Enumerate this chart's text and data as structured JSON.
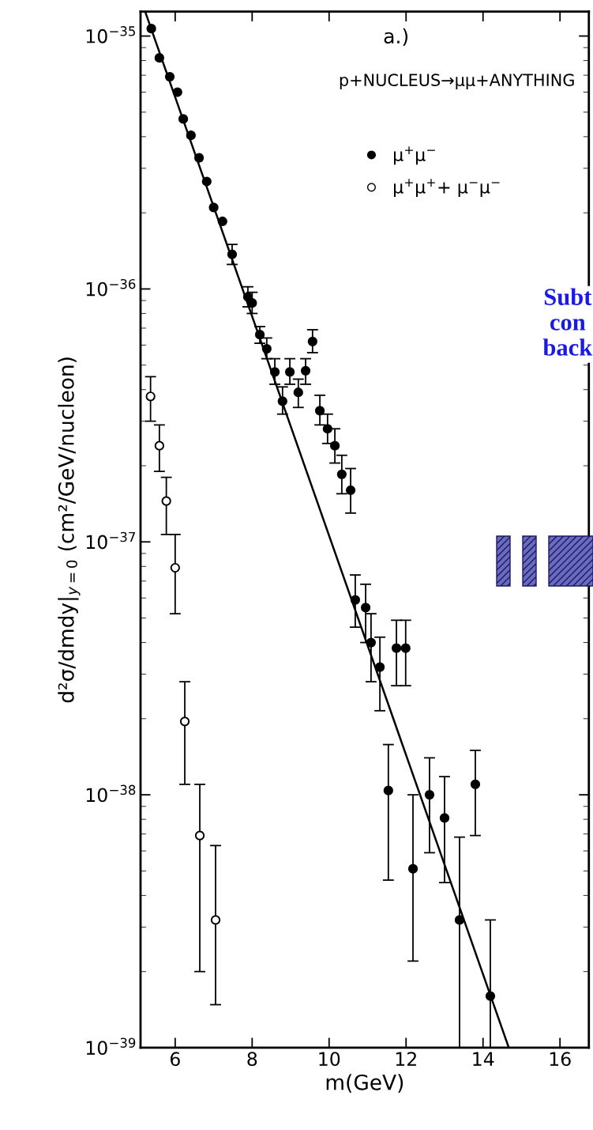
{
  "chart_data": {
    "type": "scatter",
    "xlabel": "m(GeV)",
    "ylabel": "d²σ/dmdy|$_{y=0}$ (cm²/GeV/nucleon)",
    "log": "y",
    "xlim": [
      5.1,
      16.75
    ],
    "ylim": [
      1e-39,
      1.25e-35
    ],
    "xticks": [
      6,
      8,
      10,
      12,
      14,
      16
    ],
    "yticks": [
      {
        "value": 1e-39,
        "label": "10$^{−39}$"
      },
      {
        "value": 1e-38,
        "label": "10$^{−38}$"
      },
      {
        "value": 1e-37,
        "label": "10$^{−37}$"
      },
      {
        "value": 1e-36,
        "label": "10$^{−36}$"
      },
      {
        "value": 1e-35,
        "label": "10$^{−35}$"
      }
    ],
    "grid": false,
    "legend": "top right",
    "annotations": [
      "a.)",
      "p+NUCLEUS→μμ+ANYTHING",
      "Subt\ncon\nback"
    ],
    "series": [
      {
        "name": "μ$^{+}$μ$^{−}$",
        "color": "#000000",
        "marker": "circle",
        "x": [
          5.38,
          5.59,
          5.86,
          6.06,
          6.21,
          6.41,
          6.62,
          6.82,
          7.0,
          7.23,
          7.48,
          7.89,
          8.0,
          8.2,
          8.38,
          8.59,
          8.79,
          8.98,
          9.2,
          9.39,
          9.57,
          9.76,
          9.96,
          10.15,
          10.33,
          10.56,
          10.68,
          10.95,
          11.09,
          11.32,
          11.54,
          11.75,
          11.99,
          12.18,
          12.61,
          13.0,
          13.39,
          13.8,
          14.19
        ],
        "values": [
          1.07e-35,
          8.2e-36,
          6.9e-36,
          6e-36,
          4.7e-36,
          4.05e-36,
          3.3e-36,
          2.66e-36,
          2.1e-36,
          1.85e-36,
          1.37e-36,
          9.3e-37,
          8.8e-37,
          6.6e-37,
          5.8e-37,
          4.7e-37,
          3.6e-37,
          4.7e-37,
          3.9e-37,
          4.75e-37,
          6.2e-37,
          3.3e-37,
          2.8e-37,
          2.4e-37,
          1.85e-37,
          1.6e-37,
          5.9e-38,
          5.5e-38,
          4e-38,
          3.2e-38,
          1.04e-38,
          3.8e-38,
          3.8e-38,
          5.1e-39,
          1e-38,
          8.1e-39,
          3.2e-39,
          1.1e-38,
          1.6e-39
        ],
        "errors": [
          null,
          null,
          null,
          null,
          null,
          null,
          null,
          null,
          null,
          null,
          [
            1.25e-36,
            1.5e-36
          ],
          [
            8.5e-37,
            1.02e-36
          ],
          [
            8e-37,
            9.7e-37
          ],
          [
            6.1e-37,
            7.1e-37
          ],
          [
            5.3e-37,
            6.4e-37
          ],
          [
            4.2e-37,
            5.3e-37
          ],
          [
            3.2e-37,
            4.1e-37
          ],
          [
            4.2e-37,
            5.3e-37
          ],
          [
            3.4e-37,
            4.4e-37
          ],
          [
            4.2e-37,
            5.3e-37
          ],
          [
            5.6e-37,
            6.9e-37
          ],
          [
            2.9e-37,
            3.8e-37
          ],
          [
            2.45e-37,
            3.2e-37
          ],
          [
            2.05e-37,
            2.8e-37
          ],
          [
            1.55e-37,
            2.2e-37
          ],
          [
            1.3e-37,
            1.95e-37
          ],
          [
            4.6e-38,
            7.4e-38
          ],
          [
            4e-38,
            6.8e-38
          ],
          [
            2.8e-38,
            5.2e-38
          ],
          [
            2.15e-38,
            4.2e-38
          ],
          [
            4.6e-39,
            1.58e-38
          ],
          [
            2.7e-38,
            4.9e-38
          ],
          [
            2.7e-38,
            4.9e-38
          ],
          [
            2.2e-39,
            1e-38
          ],
          [
            5.9e-39,
            1.4e-38
          ],
          [
            4.5e-39,
            1.18e-38
          ],
          [
            1e-39,
            6.8e-39
          ],
          [
            6.9e-39,
            1.5e-38
          ],
          [
            1e-39,
            3.2e-39
          ]
        ]
      },
      {
        "name": "μ$^{+}$μ$^{+}$+ μ$^{−}$μ$^{−}$",
        "color": "#000000",
        "marker": "open circle",
        "x": [
          5.36,
          5.59,
          5.77,
          6.0,
          6.25,
          6.64,
          7.05
        ],
        "values": [
          3.76e-37,
          2.4e-37,
          1.45e-37,
          7.9e-38,
          1.95e-38,
          6.9e-39,
          3.2e-39
        ],
        "errors": [
          [
            3e-37,
            4.5e-37
          ],
          [
            1.9e-37,
            2.9e-37
          ],
          [
            1.07e-37,
            1.8e-37
          ],
          [
            5.2e-38,
            1.07e-37
          ],
          [
            1.1e-38,
            2.8e-38
          ],
          [
            2e-39,
            1.1e-38
          ],
          [
            1.48e-39,
            6.3e-39
          ]
        ]
      },
      {
        "type": "line",
        "color": "#000000",
        "x": [
          5.22,
          14.67
        ],
        "values": [
          1.25e-35,
          1e-39
        ]
      }
    ]
  }
}
